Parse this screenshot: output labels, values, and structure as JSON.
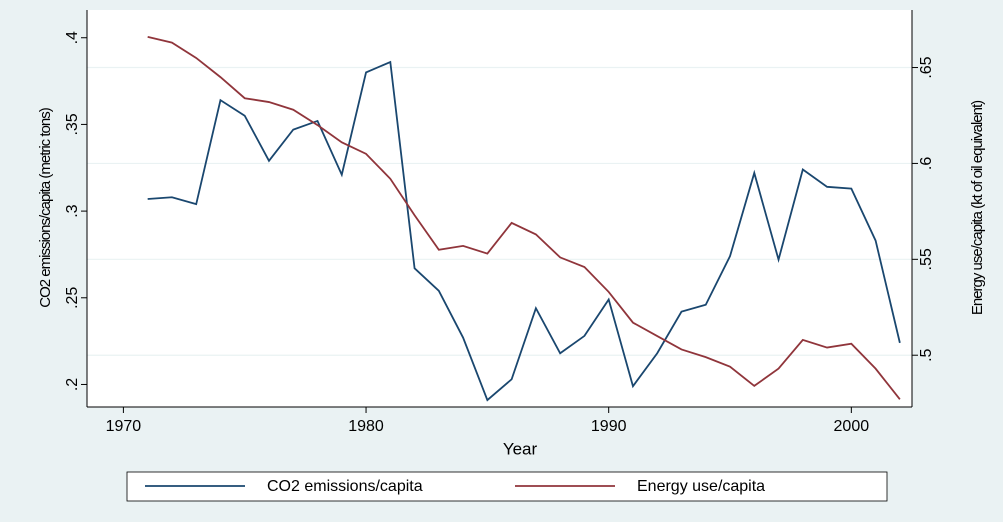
{
  "chart_data": {
    "type": "line",
    "xlabel": "Year",
    "ylabel": "CO2 emissions/capita (metric tons)",
    "y2label": "Energy use/capita (kt of oil equivalent)",
    "x": [
      1971,
      1972,
      1973,
      1974,
      1975,
      1976,
      1977,
      1978,
      1979,
      1980,
      1981,
      1982,
      1983,
      1984,
      1985,
      1986,
      1987,
      1988,
      1989,
      1990,
      1991,
      1992,
      1993,
      1994,
      1995,
      1996,
      1997,
      1998,
      1999,
      2000,
      2001,
      2002
    ],
    "series": [
      {
        "name": "CO2 emissions/capita",
        "color": "#1a476f",
        "axis": "y",
        "values": [
          0.307,
          0.308,
          0.304,
          0.364,
          0.355,
          0.329,
          0.347,
          0.352,
          0.321,
          0.38,
          0.386,
          0.267,
          0.254,
          0.227,
          0.191,
          0.203,
          0.244,
          0.218,
          0.228,
          0.249,
          0.199,
          0.218,
          0.242,
          0.246,
          0.274,
          0.322,
          0.272,
          0.324,
          0.314,
          0.313,
          0.283,
          0.224
        ]
      },
      {
        "name": "Energy use/capita",
        "color": "#90353b",
        "axis": "y2",
        "values": [
          0.666,
          0.663,
          0.655,
          0.645,
          0.634,
          0.632,
          0.628,
          0.62,
          0.611,
          0.605,
          0.592,
          0.573,
          0.555,
          0.557,
          0.553,
          0.569,
          0.563,
          0.551,
          0.546,
          0.533,
          0.517,
          0.51,
          0.503,
          0.499,
          0.494,
          0.484,
          0.493,
          0.508,
          0.504,
          0.506,
          0.493,
          0.477
        ]
      }
    ],
    "xlim": [
      1968.5,
      2002.5
    ],
    "xticks": [
      1970,
      1980,
      1990,
      2000
    ],
    "ylim": [
      0.187,
      0.416
    ],
    "yticks": [
      {
        "value": 0.2,
        "label": ".2"
      },
      {
        "value": 0.25,
        "label": ".25"
      },
      {
        "value": 0.3,
        "label": ".3"
      },
      {
        "value": 0.35,
        "label": ".35"
      },
      {
        "value": 0.4,
        "label": ".4"
      }
    ],
    "y2lim": [
      0.473,
      0.68
    ],
    "y2ticks": [
      {
        "value": 0.5,
        "label": ".5"
      },
      {
        "value": 0.55,
        "label": ".55"
      },
      {
        "value": 0.6,
        "label": ".6"
      },
      {
        "value": 0.65,
        "label": ".65"
      }
    ],
    "grid": "y2",
    "legend": "bottom"
  }
}
